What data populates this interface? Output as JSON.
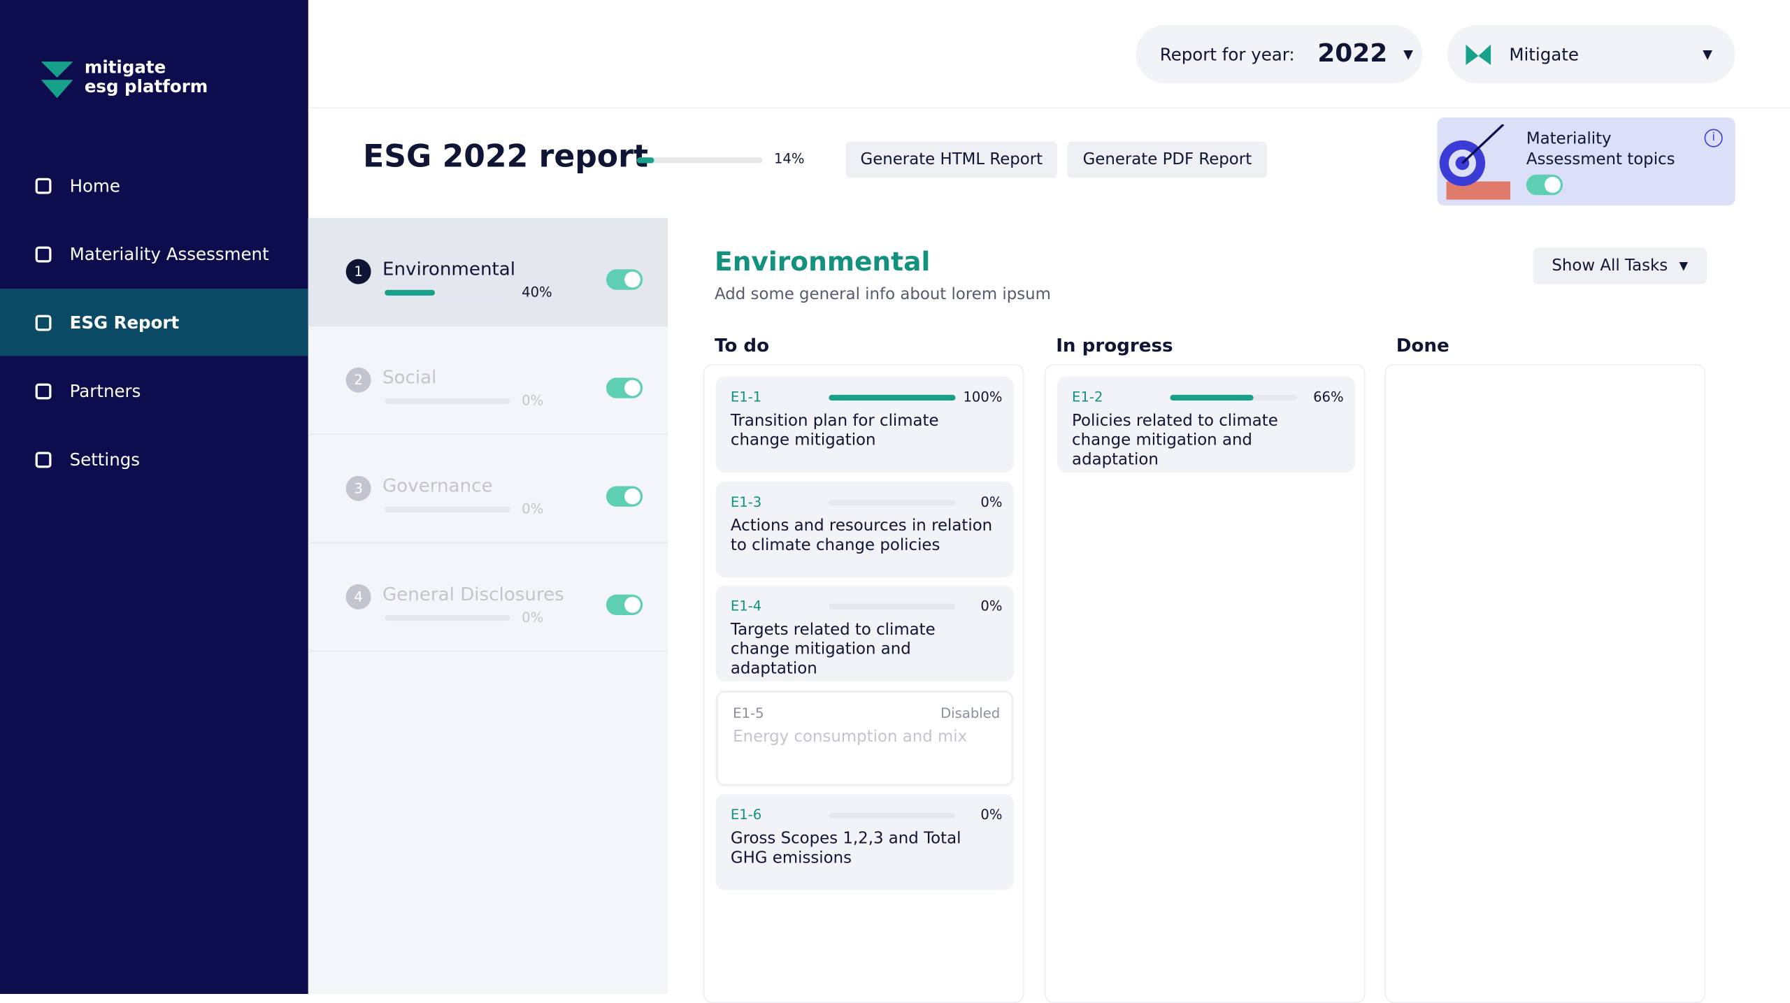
{
  "brand": {
    "line1": "mitigate",
    "line2": "esg platform"
  },
  "nav": [
    {
      "label": "Home"
    },
    {
      "label": "Materiality Assessment"
    },
    {
      "label": "ESG Report"
    },
    {
      "label": "Partners"
    },
    {
      "label": "Settings"
    }
  ],
  "header": {
    "year_label": "Report for year:",
    "year": "2022",
    "organization": "Mitigate"
  },
  "report": {
    "title": "ESG 2022 report",
    "progress": {
      "value": 14,
      "label": "14%"
    },
    "buttons": [
      "Generate HTML Report",
      "Generate PDF Report"
    ],
    "materiality": "Materiality Assessment topics"
  },
  "sections": [
    {
      "number": "1",
      "name": "Environmental",
      "progress": {
        "value": 40,
        "label": "40%"
      }
    },
    {
      "number": "2",
      "name": "Social",
      "progress": {
        "value": 0,
        "label": "0%"
      }
    },
    {
      "number": "3",
      "name": "Governance",
      "progress": {
        "value": 0,
        "label": "0%"
      }
    },
    {
      "number": "4",
      "name": "General Disclosures",
      "progress": {
        "value": 0,
        "label": "0%"
      }
    }
  ],
  "detail": {
    "title": "Environmental",
    "subtitle": "Add some general info about lorem ipsum",
    "filter": "Show All Tasks"
  },
  "columns": [
    {
      "title": "To do",
      "cards": [
        {
          "id": "E1-1",
          "progress": {
            "value": 100,
            "label": "100%"
          },
          "title": "Transition plan for climate change mitigation"
        },
        {
          "id": "E1-3",
          "progress": {
            "value": 0,
            "label": "0%"
          },
          "title": "Actions and resources in relation to climate change policies"
        },
        {
          "id": "E1-4",
          "progress": {
            "value": 0,
            "label": "0%"
          },
          "title": "Targets related to climate change mitigation and adaptation"
        },
        {
          "id": "E1-5",
          "status": "Disabled",
          "title": "Energy consumption and mix"
        },
        {
          "id": "E1-6",
          "progress": {
            "value": 0,
            "label": "0%"
          },
          "title": "Gross Scopes 1,2,3 and Total GHG emissions"
        }
      ]
    },
    {
      "title": "In progress",
      "cards": [
        {
          "id": "E1-2",
          "progress": {
            "value": 66,
            "label": "66%"
          },
          "title": "Policies related to climate change mitigation and adaptation"
        }
      ]
    },
    {
      "title": "Done",
      "cards": []
    }
  ]
}
